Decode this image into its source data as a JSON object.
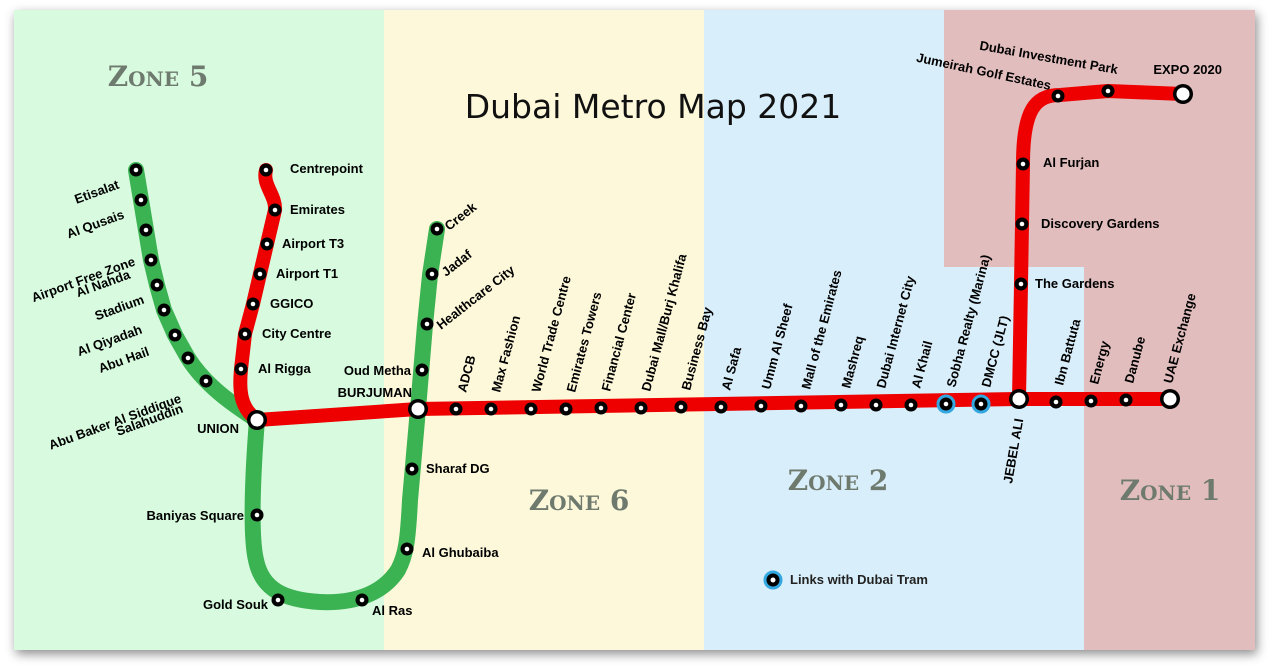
{
  "title": "Dubai Metro Map 2021",
  "legend": {
    "tram_links": "Links with Dubai Tram"
  },
  "colors": {
    "red_line": "#ee0000",
    "green_line": "#3cb353",
    "tram_ring": "#33a7e0",
    "zone5": "#d8fbdf",
    "zone6": "#fdf8d9",
    "zone2": "#d8eefa",
    "zone1": "#e2bdbd"
  },
  "zones": [
    {
      "id": "zone5",
      "label": "Zone 5"
    },
    {
      "id": "zone6",
      "label": "Zone 6"
    },
    {
      "id": "zone2",
      "label": "Zone 2"
    },
    {
      "id": "zone1",
      "label": "Zone 1"
    }
  ],
  "stations": [
    {
      "id": "centrepoint",
      "name": "Centrepoint"
    },
    {
      "id": "emirates",
      "name": "Emirates"
    },
    {
      "id": "airport-t3",
      "name": "Airport T3"
    },
    {
      "id": "airport-t1",
      "name": "Airport T1"
    },
    {
      "id": "ggico",
      "name": "GGICO"
    },
    {
      "id": "city-centre",
      "name": "City Centre"
    },
    {
      "id": "al-rigga",
      "name": "Al Rigga"
    },
    {
      "id": "union",
      "name": "UNION"
    },
    {
      "id": "burjuman",
      "name": "BURJUMAN"
    },
    {
      "id": "adcb",
      "name": "ADCB"
    },
    {
      "id": "max-fashion",
      "name": "Max Fashion"
    },
    {
      "id": "world-trade-centre",
      "name": "World Trade Centre"
    },
    {
      "id": "emirates-towers",
      "name": "Emirates Towers"
    },
    {
      "id": "financial-center",
      "name": "Financial Center"
    },
    {
      "id": "dubai-mall",
      "name": "Dubai Mall/Burj Khalifa"
    },
    {
      "id": "business-bay",
      "name": "Business Bay"
    },
    {
      "id": "al-safa",
      "name": "Al Safa"
    },
    {
      "id": "umm-al-sheef",
      "name": "Umm Al Sheef"
    },
    {
      "id": "mall-of-emirates",
      "name": "Mall of the Emirates"
    },
    {
      "id": "mashreq",
      "name": "Mashreq"
    },
    {
      "id": "dubai-internet-city",
      "name": "Dubai Internet City"
    },
    {
      "id": "al-khail",
      "name": "Al Khail"
    },
    {
      "id": "sobha-realty",
      "name": "Sobha Realty (Marina)"
    },
    {
      "id": "dmcc",
      "name": "DMCC (JLT)"
    },
    {
      "id": "jebel-ali",
      "name": "JEBEL ALI"
    },
    {
      "id": "ibn-battuta",
      "name": "Ibn Battuta"
    },
    {
      "id": "energy",
      "name": "Energy"
    },
    {
      "id": "danube",
      "name": "Danube"
    },
    {
      "id": "uae-exchange",
      "name": "UAE Exchange"
    },
    {
      "id": "the-gardens",
      "name": "The Gardens"
    },
    {
      "id": "discovery-gardens",
      "name": "Discovery Gardens"
    },
    {
      "id": "al-furjan",
      "name": "Al Furjan"
    },
    {
      "id": "jumeirah-golf-estates",
      "name": "Jumeirah Golf Estates"
    },
    {
      "id": "dubai-investment-park",
      "name": "Dubai Investment Park"
    },
    {
      "id": "expo-2020",
      "name": "EXPO 2020"
    },
    {
      "id": "etisalat",
      "name": "Etisalat"
    },
    {
      "id": "al-qusais",
      "name": "Al Qusais"
    },
    {
      "id": "airport-free-zone",
      "name": "Airport Free Zone"
    },
    {
      "id": "al-nahda",
      "name": "Al Nahda"
    },
    {
      "id": "stadium",
      "name": "Stadium"
    },
    {
      "id": "al-qiyadah",
      "name": "Al Qiyadah"
    },
    {
      "id": "abu-hail",
      "name": "Abu Hail"
    },
    {
      "id": "abu-baker-al-siddique",
      "name": "Abu Baker Al Siddique"
    },
    {
      "id": "salahuddin",
      "name": "Salahuddin"
    },
    {
      "id": "baniyas-square",
      "name": "Baniyas Square"
    },
    {
      "id": "gold-souk",
      "name": "Gold Souk"
    },
    {
      "id": "al-ras",
      "name": "Al Ras"
    },
    {
      "id": "al-ghubaiba",
      "name": "Al Ghubaiba"
    },
    {
      "id": "sharaf-dg",
      "name": "Sharaf DG"
    },
    {
      "id": "oud-metha",
      "name": "Oud Metha"
    },
    {
      "id": "healthcare-city",
      "name": "Healthcare City"
    },
    {
      "id": "jadaf",
      "name": "Jadaf"
    },
    {
      "id": "creek",
      "name": "Creek"
    }
  ]
}
